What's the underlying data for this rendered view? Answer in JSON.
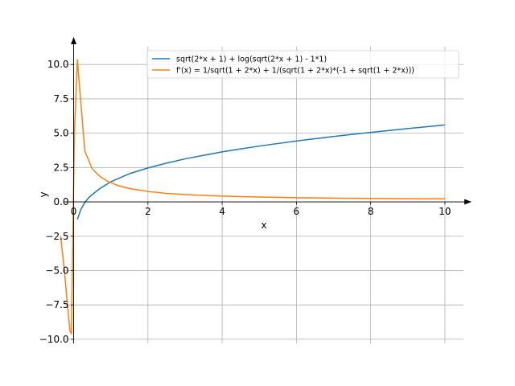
{
  "chart_data": {
    "type": "line",
    "title": "",
    "xlabel": "x",
    "ylabel": "y",
    "xlim": [
      -0.25,
      10.5
    ],
    "ylim": [
      -10.3,
      11.3
    ],
    "grid": true,
    "legend_position": "top-right",
    "x_ticks": [
      0,
      2,
      4,
      6,
      8,
      10
    ],
    "y_ticks": [
      -10.0,
      -7.5,
      -5.0,
      -2.5,
      0.0,
      2.5,
      5.0,
      7.5,
      10.0
    ],
    "x_tick_labels": [
      "0",
      "2",
      "4",
      "6",
      "8",
      "10"
    ],
    "y_tick_labels": [
      "−10.0",
      "−7.5",
      "−5.0",
      "−2.5",
      "0.0",
      "2.5",
      "5.0",
      "7.5",
      "10.0"
    ],
    "series": [
      {
        "name": "sqrt(2*x + 1) + log(sqrt(2*x + 1) - 1*1)",
        "color": "#1f77b4",
        "x": [
          0.1,
          0.2,
          0.3,
          0.4,
          0.5,
          0.7,
          1.0,
          1.5,
          2.0,
          2.5,
          3.0,
          3.5,
          4.0,
          4.5,
          5.0,
          5.5,
          6.0,
          6.5,
          7.0,
          7.5,
          8.0,
          8.5,
          9.0,
          9.5,
          10.0
        ],
        "y": [
          -1.28,
          -0.52,
          -0.05,
          0.29,
          0.53,
          0.96,
          1.46,
          2.05,
          2.47,
          2.82,
          3.13,
          3.39,
          3.64,
          3.86,
          4.06,
          4.25,
          4.43,
          4.6,
          4.76,
          4.91,
          5.06,
          5.2,
          5.34,
          5.47,
          5.6
        ]
      },
      {
        "name": "f'(x) = 1/sqrt(1 + 2*x) + 1/(sqrt(1 + 2*x)*(-1 + sqrt(1 + 2*x)))",
        "color": "#ff7f0e",
        "x": [
          -0.35,
          -0.25,
          -0.15,
          -0.1,
          -0.06,
          0.02,
          0.1,
          0.3,
          0.5,
          0.7,
          0.9,
          1.2,
          1.5,
          2.0,
          2.5,
          3.0,
          4.0,
          5.0,
          6.0,
          7.0,
          8.0,
          9.0,
          10.0
        ],
        "y": [
          -2.5,
          -5.0,
          -8.0,
          -9.4,
          -9.6,
          5.0,
          10.35,
          3.7,
          2.41,
          1.87,
          1.52,
          1.18,
          0.97,
          0.76,
          0.62,
          0.53,
          0.42,
          0.35,
          0.3,
          0.27,
          0.25,
          0.23,
          0.22
        ]
      }
    ]
  }
}
